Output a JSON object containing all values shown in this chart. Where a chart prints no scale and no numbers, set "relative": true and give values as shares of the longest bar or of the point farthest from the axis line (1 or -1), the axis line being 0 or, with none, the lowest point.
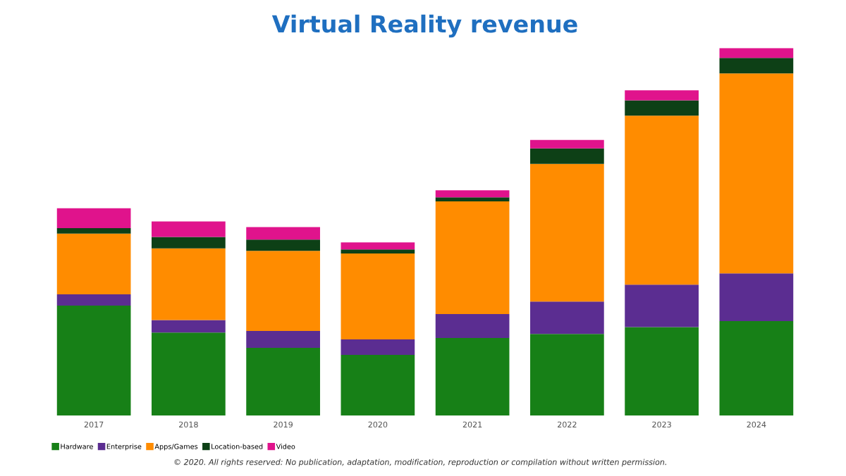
{
  "chart_data": {
    "type": "bar",
    "title": "Virtual Reality revenue",
    "relative": true,
    "stacked": true,
    "legend": "bottom left",
    "grid": false,
    "categories": [
      "2017",
      "2018",
      "2019",
      "2020",
      "2021",
      "2022",
      "2023",
      "2024"
    ],
    "series": [
      {
        "name": "Hardware",
        "color": "#178017",
        "values": [
          0.299,
          0.226,
          0.184,
          0.165,
          0.211,
          0.222,
          0.241,
          0.257
        ]
      },
      {
        "name": "Enterprise",
        "color": "#5b2d91",
        "values": [
          0.031,
          0.034,
          0.046,
          0.042,
          0.065,
          0.088,
          0.115,
          0.13
        ]
      },
      {
        "name": "Apps/Games",
        "color": "#ff8c00",
        "values": [
          0.165,
          0.195,
          0.218,
          0.234,
          0.307,
          0.375,
          0.46,
          0.544
        ]
      },
      {
        "name": "Location-based",
        "color": "#0d4016",
        "values": [
          0.015,
          0.031,
          0.031,
          0.011,
          0.011,
          0.042,
          0.042,
          0.042
        ]
      },
      {
        "name": "Video",
        "color": "#e0138c",
        "values": [
          0.054,
          0.042,
          0.034,
          0.019,
          0.019,
          0.023,
          0.027,
          0.027
        ]
      }
    ],
    "annotations": [
      "© 2020. All rights reserved: No publication, adaptation, modification, reproduction or compilation without written permission."
    ]
  }
}
